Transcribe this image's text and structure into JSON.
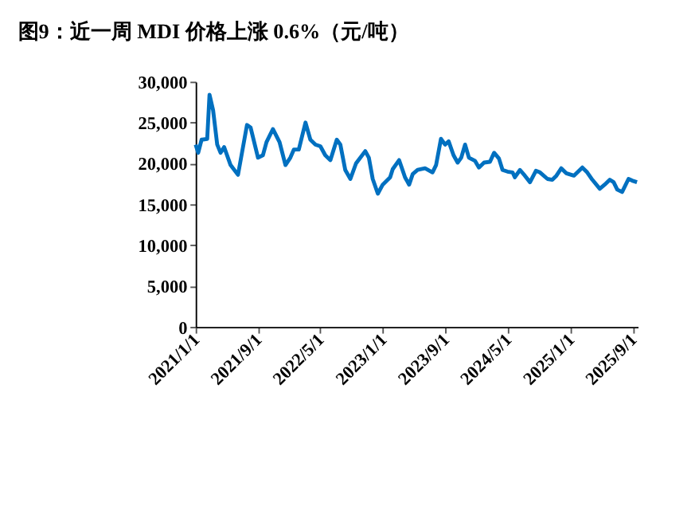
{
  "chart_data": {
    "type": "line",
    "title": "图9：近一周 MDI 价格上涨 0.6%（元/吨）",
    "x": [
      "2021-01-01",
      "2021-01-11",
      "2021-01-24",
      "2021-02-15",
      "2021-02-24",
      "2021-03-10",
      "2021-03-26",
      "2021-04-08",
      "2021-04-22",
      "2021-05-17",
      "2021-06-15",
      "2021-07-20",
      "2021-08-03",
      "2021-09-01",
      "2021-09-20",
      "2021-10-04",
      "2021-10-29",
      "2021-11-24",
      "2021-12-17",
      "2022-01-05",
      "2022-01-19",
      "2022-02-07",
      "2022-03-05",
      "2022-03-24",
      "2022-04-13",
      "2022-05-02",
      "2022-05-21",
      "2022-06-10",
      "2022-07-05",
      "2022-07-19",
      "2022-08-07",
      "2022-08-27",
      "2022-09-18",
      "2022-10-24",
      "2022-11-07",
      "2022-11-22",
      "2022-12-12",
      "2022-12-31",
      "2023-01-29",
      "2023-02-08",
      "2023-03-05",
      "2023-03-28",
      "2023-04-13",
      "2023-04-27",
      "2023-05-16",
      "2023-06-14",
      "2023-07-13",
      "2023-07-27",
      "2023-08-15",
      "2023-08-31",
      "2023-09-14",
      "2023-10-03",
      "2023-10-19",
      "2023-11-02",
      "2023-11-17",
      "2023-12-02",
      "2023-12-26",
      "2024-01-10",
      "2024-01-30",
      "2024-02-22",
      "2024-03-09",
      "2024-03-28",
      "2024-04-11",
      "2024-04-30",
      "2024-05-20",
      "2024-05-29",
      "2024-06-18",
      "2024-07-07",
      "2024-07-27",
      "2024-08-19",
      "2024-09-04",
      "2024-10-03",
      "2024-10-22",
      "2024-11-07",
      "2024-11-26",
      "2024-12-15",
      "2025-01-14",
      "2025-02-16",
      "2025-03-07",
      "2025-03-27",
      "2025-04-25",
      "2025-05-14",
      "2025-06-03",
      "2025-06-18",
      "2025-07-02",
      "2025-07-21",
      "2025-08-15",
      "2025-08-29",
      "2025-09-17"
    ],
    "series": [
      {
        "color": "#0070c0",
        "values": [
          22300,
          21300,
          22900,
          23000,
          28400,
          26500,
          22300,
          21300,
          22000,
          19800,
          18600,
          24700,
          24400,
          20700,
          21000,
          22600,
          24200,
          22600,
          19800,
          20700,
          21700,
          21700,
          25000,
          22900,
          22300,
          22100,
          21000,
          20400,
          22900,
          22300,
          19200,
          18100,
          20000,
          21500,
          20700,
          18100,
          16300,
          17400,
          18300,
          19300,
          20400,
          18300,
          17400,
          18700,
          19200,
          19400,
          18900,
          19800,
          23000,
          22300,
          22700,
          21000,
          20100,
          20700,
          22300,
          20700,
          20300,
          19500,
          20100,
          20200,
          21300,
          20600,
          19200,
          19000,
          18900,
          18300,
          19200,
          18500,
          17700,
          19100,
          18900,
          18100,
          18000,
          18500,
          19400,
          18800,
          18500,
          19500,
          18900,
          18000,
          16900,
          17400,
          18000,
          17700,
          16800,
          16500,
          18100,
          17900,
          17700
        ]
      }
    ],
    "xlim": [
      "2021-01-01",
      "2025-09-20"
    ],
    "xticks": [
      {
        "value": "2021-01-01",
        "label": "2021/1/1"
      },
      {
        "value": "2021-09-01",
        "label": "2021/9/1"
      },
      {
        "value": "2022-05-01",
        "label": "2022/5/1"
      },
      {
        "value": "2023-01-01",
        "label": "2023/1/1"
      },
      {
        "value": "2023-09-01",
        "label": "2023/9/1"
      },
      {
        "value": "2024-05-01",
        "label": "2024/5/1"
      },
      {
        "value": "2025-01-01",
        "label": "2025/1/1"
      },
      {
        "value": "2025-09-01",
        "label": "2025/9/1"
      }
    ],
    "ylim": [
      0,
      30000
    ],
    "yticks": [
      0,
      {
        "value": 5000,
        "label": "5,000"
      },
      {
        "value": 10000,
        "label": "10,000"
      },
      {
        "value": 15000,
        "label": "15,000"
      },
      {
        "value": 20000,
        "label": "20,000"
      },
      {
        "value": 25000,
        "label": "25,000"
      },
      {
        "value": 30000,
        "label": "30,000"
      }
    ],
    "grid": false,
    "line_style": "solid",
    "marker": "none"
  }
}
